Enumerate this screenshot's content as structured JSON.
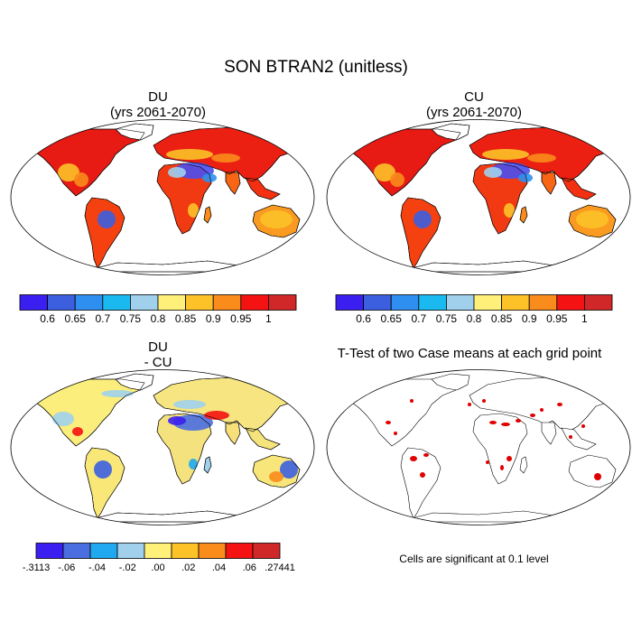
{
  "figure_title": "SON BTRAN2 (unitless)",
  "panels": [
    {
      "id": "du",
      "title_line1": "DU",
      "title_line2": "(yrs 2061-2070)"
    },
    {
      "id": "cu",
      "title_line1": "CU",
      "title_line2": "(yrs 2061-2070)"
    },
    {
      "id": "diff",
      "title_line1": "DU",
      "title_line2": "- CU"
    },
    {
      "id": "ttest",
      "title_line1": "T-Test of two Case means at each grid point",
      "title_line2": ""
    }
  ],
  "colorbar_abs": {
    "colors": [
      "#3b1ff0",
      "#3c5fe0",
      "#2f8ff0",
      "#1abaf0",
      "#a0d0ec",
      "#fff07a",
      "#fcc228",
      "#fa8c1c",
      "#f51212",
      "#d02828"
    ],
    "labels": [
      "0.6",
      "0.65",
      "0.7",
      "0.75",
      "0.8",
      "0.85",
      "0.9",
      "0.95",
      "1"
    ]
  },
  "colorbar_diff": {
    "colors": [
      "#3b1ff0",
      "#4a6ee0",
      "#20a8f0",
      "#a0d0ec",
      "#fff07a",
      "#fcc228",
      "#fa8c1c",
      "#f51212",
      "#d02828"
    ],
    "labels": [
      "-.3113",
      "-.06",
      "-.04",
      "-.02",
      ".00",
      ".02",
      ".04",
      ".06",
      ".27441"
    ]
  },
  "significance_note": "Cells are significant at 0.1 level",
  "colors": {
    "ocean": "#ffffff",
    "outline": "#000000",
    "significant": "#e00000"
  }
}
